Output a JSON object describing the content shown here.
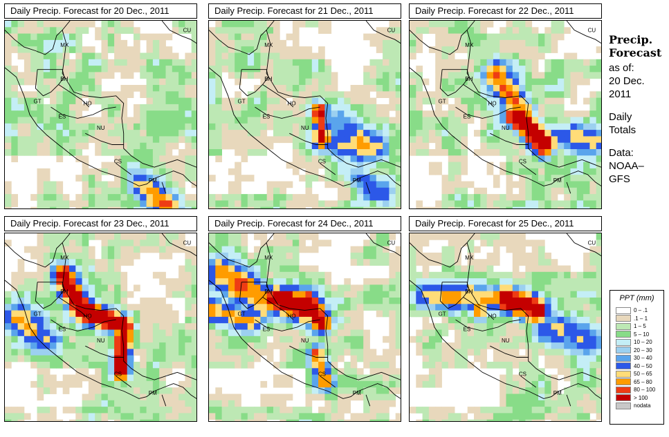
{
  "panels": [
    {
      "title": "Daily Precip. Forecast for  20 Dec., 2011",
      "day": 0
    },
    {
      "title": "Daily Precip. Forecast for  21 Dec., 2011",
      "day": 1
    },
    {
      "title": "Daily Precip. Forecast for  22 Dec., 2011",
      "day": 2
    },
    {
      "title": "Daily Precip. Forecast for  23 Dec., 2011",
      "day": 3
    },
    {
      "title": "Daily Precip. Forecast for  24 Dec., 2011",
      "day": 4
    },
    {
      "title": "Daily Precip. Forecast for  25 Dec., 2011",
      "day": 5
    }
  ],
  "country_labels": [
    "MX",
    "CU",
    "BH",
    "GT",
    "HO",
    "ES",
    "NU",
    "CS",
    "PM"
  ],
  "sidebar": {
    "title_line1": "Precip.",
    "title_line2": "Forecast",
    "asof_line1": "as of:",
    "asof_line2": "20 Dec.",
    "asof_line3": "2011",
    "totals_line1": "Daily",
    "totals_line2": "Totals",
    "data_line1": "Data:",
    "data_line2": "NOAA–",
    "data_line3": "GFS"
  },
  "legend": {
    "title": "PPT (mm)",
    "items": [
      {
        "label": "0 – .1",
        "color": "#ffffff"
      },
      {
        "label": ".1 – 1",
        "color": "#e8d8bc"
      },
      {
        "label": "1 – 5",
        "color": "#bde8b4"
      },
      {
        "label": "5 – 10",
        "color": "#88dc88"
      },
      {
        "label": "10 – 20",
        "color": "#c4eef6"
      },
      {
        "label": "20 – 30",
        "color": "#9cd0f0"
      },
      {
        "label": "30 – 40",
        "color": "#5aa4ec"
      },
      {
        "label": "40 – 50",
        "color": "#2c58e8"
      },
      {
        "label": "50 – 65",
        "color": "#ffdc78"
      },
      {
        "label": "65 – 80",
        "color": "#ff9c00"
      },
      {
        "label": "80 – 100",
        "color": "#ee3c14"
      },
      {
        "label": "> 100",
        "color": "#c40000"
      },
      {
        "label": "nodata",
        "color": "#c8c8c8"
      }
    ]
  }
}
